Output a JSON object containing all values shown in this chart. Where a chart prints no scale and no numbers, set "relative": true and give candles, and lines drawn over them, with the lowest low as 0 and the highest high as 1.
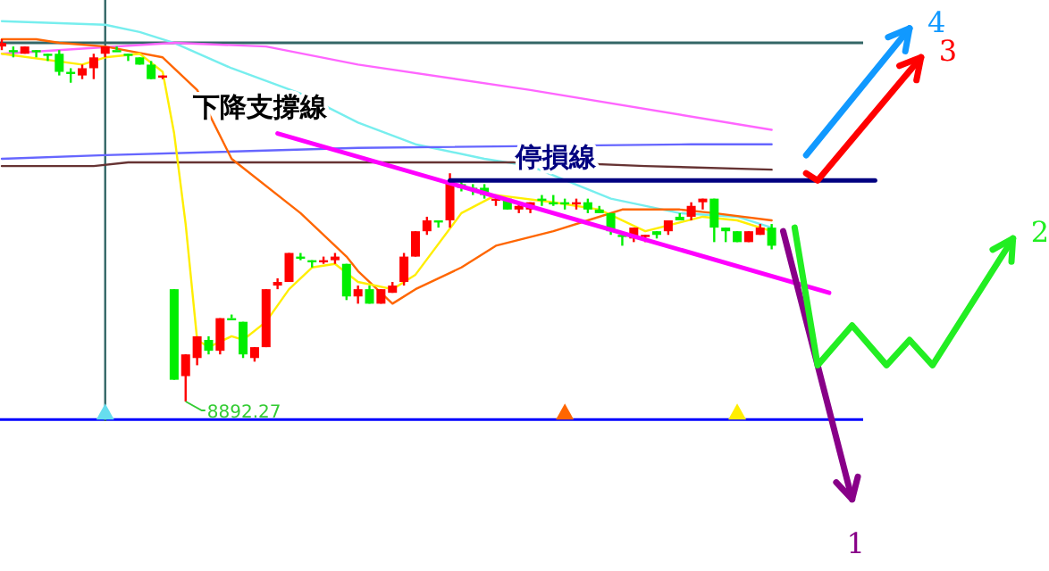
{
  "chart_data": {
    "type": "candlestick",
    "relative": true,
    "categories": [
      null,
      null,
      null,
      null,
      null,
      null,
      null,
      null,
      null,
      null,
      null,
      null,
      null,
      null,
      null,
      null,
      null,
      null,
      null,
      null,
      null,
      null,
      null,
      null,
      null,
      null,
      null,
      null,
      null,
      null,
      null,
      null,
      null,
      null,
      null,
      null,
      null,
      null,
      null,
      null,
      null,
      null,
      null,
      null,
      null,
      null,
      null,
      null,
      null,
      null,
      null,
      null,
      null,
      null,
      null,
      null,
      null,
      null,
      null,
      null,
      null,
      null,
      null,
      null,
      null,
      null,
      null,
      null,
      null,
      null,
      null,
      null,
      null,
      null,
      null,
      null,
      null,
      null,
      null,
      null,
      null,
      null,
      null,
      null,
      null,
      null,
      null,
      null,
      null,
      null
    ],
    "ohlc": [
      [
        0.98,
        1,
        0.97,
        0.99
      ],
      [
        0.97,
        0.98,
        0.95,
        0.97
      ],
      [
        0.96,
        0.98,
        0.96,
        0.98
      ],
      [
        0.97,
        0.97,
        0.95,
        0.97
      ],
      [
        0.96,
        0.96,
        0.94,
        0.96
      ],
      [
        0.96,
        0.97,
        0.9,
        0.91
      ],
      [
        0.91,
        0.92,
        0.88,
        0.91
      ],
      [
        0.9,
        0.93,
        0.89,
        0.92
      ],
      [
        0.92,
        0.96,
        0.89,
        0.95
      ],
      [
        0.96,
        0.98,
        0.95,
        0.98
      ],
      [
        0.97,
        0.98,
        0.97,
        0.97
      ],
      [
        0.96,
        0.96,
        0.94,
        0.96
      ],
      [
        0.95,
        0.95,
        0.93,
        0.93
      ],
      [
        0.93,
        0.94,
        0.89,
        0.89
      ],
      [
        0.9,
        0.9,
        0.89,
        0.9
      ],
      [
        0.31,
        0.31,
        0.06,
        0.06
      ],
      [
        0.07,
        0.13,
        0,
        0.13
      ],
      [
        0.12,
        0.18,
        0.1,
        0.18
      ],
      [
        0.17,
        0.18,
        0.13,
        0.14
      ],
      [
        0.14,
        0.23,
        0.13,
        0.23
      ],
      [
        0.23,
        0.24,
        0.23,
        0.23
      ],
      [
        0.22,
        0.22,
        0.12,
        0.13
      ],
      [
        0.12,
        0.15,
        0.11,
        0.15
      ],
      [
        0.15,
        0.31,
        0.15,
        0.31
      ],
      [
        0.32,
        0.34,
        0.31,
        0.33
      ],
      [
        0.33,
        0.41,
        0.33,
        0.41
      ],
      [
        0.4,
        0.41,
        0.39,
        0.4
      ],
      [
        0.39,
        0.39,
        0.37,
        0.39
      ],
      [
        0.39,
        0.4,
        0.38,
        0.39
      ],
      [
        0.39,
        0.41,
        0.38,
        0.4
      ],
      [
        0.38,
        0.38,
        0.28,
        0.29
      ],
      [
        0.29,
        0.32,
        0.27,
        0.31
      ],
      [
        0.31,
        0.32,
        0.27,
        0.27
      ],
      [
        0.27,
        0.31,
        0.27,
        0.31
      ],
      [
        0.3,
        0.33,
        0.3,
        0.32
      ],
      [
        0.33,
        0.41,
        0.32,
        0.4
      ],
      [
        0.4,
        0.47,
        0.4,
        0.47
      ],
      [
        0.47,
        0.51,
        0.46,
        0.5
      ],
      [
        0.5,
        0.5,
        0.48,
        0.5
      ],
      [
        0.5,
        0.63,
        0.48,
        0.61
      ],
      [
        0.6,
        0.61,
        0.58,
        0.59
      ],
      [
        0.59,
        0.6,
        0.57,
        0.59
      ],
      [
        0.59,
        0.6,
        0.56,
        0.57
      ],
      [
        0.56,
        0.57,
        0.54,
        0.56
      ],
      [
        0.56,
        0.56,
        0.53,
        0.53
      ],
      [
        0.53,
        0.55,
        0.52,
        0.54
      ],
      [
        0.53,
        0.55,
        0.52,
        0.55
      ],
      [
        0.56,
        0.57,
        0.54,
        0.56
      ],
      [
        0.55,
        0.57,
        0.54,
        0.55
      ],
      [
        0.55,
        0.56,
        0.53,
        0.55
      ],
      [
        0.55,
        0.56,
        0.53,
        0.55
      ],
      [
        0.55,
        0.56,
        0.52,
        0.53
      ],
      [
        0.53,
        0.54,
        0.52,
        0.52
      ],
      [
        0.52,
        0.52,
        0.46,
        0.47
      ],
      [
        0.46,
        0.46,
        0.43,
        0.46
      ],
      [
        0.45,
        0.48,
        0.44,
        0.48
      ],
      [
        0.46,
        0.46,
        0.44,
        0.46
      ],
      [
        0.47,
        0.47,
        0.45,
        0.46
      ],
      [
        0.47,
        0.5,
        0.46,
        0.5
      ],
      [
        0.51,
        0.52,
        0.5,
        0.5
      ],
      [
        0.51,
        0.55,
        0.5,
        0.54
      ],
      [
        0.55,
        0.56,
        0.53,
        0.56
      ],
      [
        0.56,
        0.56,
        0.44,
        0.48
      ],
      [
        0.48,
        0.48,
        0.44,
        0.47
      ],
      [
        0.47,
        0.47,
        0.44,
        0.44
      ],
      [
        0.44,
        0.47,
        0.44,
        0.47
      ],
      [
        0.46,
        0.49,
        0.46,
        0.48
      ],
      [
        0.48,
        0.49,
        0.42,
        0.43
      ],
      null,
      null,
      null,
      null,
      null,
      null,
      null,
      null,
      null,
      null,
      null,
      null,
      null,
      null,
      null,
      null,
      null,
      null,
      null,
      null,
      null,
      null
    ],
    "colors": [
      "#ff0000",
      "#00ee00",
      "#ff0000",
      "#00ee00",
      "#00ee00",
      "#00ee00",
      "#00ee00",
      "#ff0000",
      "#ff0000",
      "#ff0000",
      "#00ee00",
      "#00ee00",
      "#00ee00",
      "#00ee00",
      "#ff0000",
      "#00ee00",
      "#ff0000",
      "#ff0000",
      "#00ee00",
      "#ff0000",
      "#00ee00",
      "#00ee00",
      "#ff0000",
      "#ff0000",
      "#ff0000",
      "#ff0000",
      "#00ee00",
      "#00ee00",
      "#ff0000",
      "#ff0000",
      "#00ee00",
      "#ff0000",
      "#00ee00",
      "#ff0000",
      "#ff0000",
      "#ff0000",
      "#ff0000",
      "#ff0000",
      "#00ee00",
      "#ff0000",
      "#00ee00",
      "#00ee00",
      "#00ee00",
      "#ff0000",
      "#00ee00",
      "#ff0000",
      "#ff0000",
      "#00ee00",
      "#00ee00",
      "#00ee00",
      "#ff0000",
      "#00ee00",
      "#00ee00",
      "#00ee00",
      "#00ee00",
      "#ff0000",
      "#ff0000",
      "#00ee00",
      "#ff0000",
      "#00ee00",
      "#ff0000",
      "#ff0000",
      "#00ee00",
      "#00ee00",
      "#00ee00",
      "#ff0000",
      "#ff0000",
      "#00ee00",
      null,
      null,
      null,
      null,
      null,
      null,
      null,
      null,
      null,
      null,
      null,
      null,
      null,
      null,
      null,
      null,
      null,
      null,
      null,
      null,
      null,
      null
    ],
    "series": [
      {
        "type": "line",
        "color": "#77eeee",
        "values": [
          1.05,
          null,
          null,
          null,
          null,
          null,
          null,
          null,
          null,
          1.04,
          null,
          null,
          1.02,
          null,
          null,
          0.99,
          null,
          null,
          null,
          null,
          0.92,
          null,
          null,
          null,
          null,
          null,
          0.85,
          null,
          null,
          null,
          null,
          0.77,
          null,
          null,
          null,
          null,
          0.71,
          null,
          null,
          null,
          null,
          null,
          0.67,
          null,
          null,
          null,
          0.65,
          null,
          null,
          null,
          null,
          null,
          null,
          0.56,
          null,
          null,
          null,
          null,
          null,
          0.52,
          null,
          null,
          null,
          null,
          0.51,
          null,
          null,
          0.48,
          null,
          null,
          null,
          null,
          null,
          null,
          null,
          null,
          null,
          null,
          null,
          null,
          null,
          null,
          null,
          null,
          null,
          null,
          null,
          null,
          null,
          null
        ]
      },
      {
        "type": "line",
        "color": "#ff66ff",
        "values": [
          0.96,
          null,
          null,
          null,
          null,
          null,
          null,
          null,
          null,
          null,
          null,
          null,
          null,
          null,
          null,
          0.99,
          null,
          null,
          null,
          null,
          null,
          null,
          null,
          0.98,
          null,
          null,
          null,
          null,
          null,
          null,
          null,
          0.93,
          null,
          null,
          null,
          null,
          null,
          null,
          null,
          null,
          null,
          null,
          null,
          null,
          null,
          null,
          0.86,
          null,
          null,
          null,
          null,
          null,
          null,
          null,
          null,
          null,
          null,
          null,
          null,
          null,
          null,
          null,
          null,
          null,
          null,
          null,
          null,
          0.75,
          null,
          null,
          null,
          null,
          null,
          null,
          null,
          null,
          null,
          null,
          null,
          null,
          null,
          null,
          null,
          null,
          null,
          null,
          null,
          null,
          null,
          null
        ]
      },
      {
        "type": "line",
        "color": "#6666ff",
        "values": [
          0.67,
          null,
          null,
          null,
          null,
          null,
          null,
          null,
          null,
          0.68,
          null,
          null,
          null,
          null,
          null,
          null,
          null,
          null,
          null,
          null,
          null,
          null,
          null,
          null,
          null,
          null,
          null,
          null,
          null,
          null,
          null,
          0.7,
          null,
          null,
          null,
          null,
          null,
          null,
          null,
          null,
          null,
          null,
          null,
          null,
          null,
          null,
          null,
          null,
          null,
          null,
          null,
          null,
          null,
          null,
          null,
          null,
          null,
          null,
          null,
          null,
          0.71,
          null,
          null,
          null,
          null,
          null,
          null,
          0.71,
          null,
          null,
          null,
          null,
          null,
          null,
          null,
          null,
          null,
          null,
          null,
          null,
          null,
          null,
          null,
          null,
          null,
          null,
          null,
          null,
          null,
          null
        ]
      },
      {
        "type": "line",
        "color": "#663333",
        "values": [
          0.65,
          null,
          null,
          null,
          null,
          null,
          null,
          null,
          0.65,
          null,
          null,
          0.66,
          null,
          null,
          null,
          null,
          null,
          null,
          null,
          null,
          null,
          null,
          null,
          null,
          null,
          null,
          null,
          null,
          null,
          null,
          null,
          null,
          null,
          null,
          null,
          null,
          null,
          null,
          null,
          null,
          null,
          null,
          null,
          null,
          null,
          null,
          null,
          null,
          0.66,
          null,
          null,
          null,
          null,
          null,
          null,
          null,
          0.65,
          null,
          null,
          null,
          null,
          null,
          null,
          null,
          null,
          null,
          null,
          0.64,
          null,
          null,
          null,
          null,
          null,
          null,
          null,
          null,
          null,
          null,
          null,
          null,
          null,
          null,
          null,
          null,
          null,
          null,
          null,
          null,
          null,
          null
        ]
      },
      {
        "type": "line",
        "color": "#ff6600",
        "values": [
          1,
          null,
          null,
          1,
          null,
          0.99,
          null,
          null,
          null,
          0.98,
          null,
          null,
          null,
          null,
          0.95,
          null,
          null,
          0.86,
          null,
          null,
          0.67,
          null,
          null,
          null,
          null,
          null,
          0.52,
          null,
          null,
          null,
          0.4,
          0.36,
          null,
          null,
          0.27,
          null,
          0.31,
          null,
          null,
          null,
          0.37,
          null,
          null,
          0.43,
          null,
          null,
          null,
          null,
          0.47,
          null,
          null,
          0.5,
          null,
          null,
          0.53,
          null,
          null,
          null,
          null,
          0.53,
          null,
          null,
          0.52,
          null,
          null,
          null,
          null,
          0.5,
          null,
          null,
          null,
          null,
          null,
          null,
          null,
          null,
          null,
          null,
          null,
          null,
          null,
          null,
          null,
          null,
          null,
          null,
          null,
          null,
          null,
          null
        ]
      },
      {
        "type": "line",
        "color": "#ffee00",
        "values": [
          0.96,
          null,
          null,
          null,
          null,
          null,
          null,
          0.93,
          null,
          0.95,
          null,
          null,
          0.96,
          null,
          0.91,
          0.74,
          0.49,
          0.17,
          0.15,
          null,
          0.18,
          0.17,
          null,
          0.22,
          null,
          0.31,
          null,
          0.37,
          null,
          0.38,
          null,
          0.33,
          null,
          null,
          0.31,
          null,
          0.35,
          null,
          null,
          null,
          0.52,
          null,
          null,
          0.57,
          null,
          null,
          null,
          null,
          0.55,
          null,
          null,
          null,
          0.53,
          null,
          null,
          null,
          0.47,
          null,
          null,
          null,
          null,
          0.51,
          null,
          null,
          0.5,
          null,
          null,
          0.47,
          null,
          null,
          null,
          null,
          null,
          null,
          null,
          null,
          null,
          null,
          null,
          null,
          null,
          null,
          null,
          null,
          null,
          null,
          null,
          null,
          null,
          null
        ]
      },
      {
        "type": "line",
        "name": "下降支撐線",
        "color": "#ff00ff",
        "values": [
          null,
          null,
          null,
          null,
          null,
          null,
          null,
          null,
          null,
          null,
          null,
          null,
          null,
          null,
          null,
          null,
          null,
          null,
          null,
          null,
          null,
          null,
          null,
          null,
          0.74,
          null,
          null,
          null,
          null,
          null,
          null,
          null,
          null,
          null,
          null,
          null,
          null,
          null,
          null,
          null,
          null,
          null,
          null,
          null,
          null,
          null,
          null,
          null,
          null,
          null,
          null,
          null,
          null,
          null,
          null,
          null,
          null,
          null,
          null,
          null,
          null,
          null,
          null,
          null,
          null,
          null,
          null,
          null,
          null,
          null,
          null,
          null,
          0.3,
          null,
          null,
          null,
          null,
          null,
          null,
          null,
          null,
          null,
          null,
          null,
          null,
          null,
          null,
          null,
          null,
          null
        ]
      },
      {
        "type": "line",
        "name": "停損線",
        "color": "#000080",
        "values": [
          null,
          null,
          null,
          null,
          null,
          null,
          null,
          null,
          null,
          null,
          null,
          null,
          null,
          null,
          null,
          null,
          null,
          null,
          null,
          null,
          null,
          null,
          null,
          null,
          null,
          null,
          null,
          null,
          null,
          null,
          null,
          null,
          null,
          null,
          null,
          null,
          null,
          null,
          null,
          0.61,
          null,
          null,
          null,
          null,
          null,
          null,
          null,
          null,
          null,
          null,
          null,
          null,
          null,
          null,
          null,
          null,
          null,
          null,
          null,
          null,
          null,
          null,
          null,
          null,
          null,
          null,
          null,
          null,
          null,
          null,
          null,
          null,
          null,
          null,
          null,
          null,
          0.61,
          null,
          null,
          null,
          null,
          null,
          null,
          null,
          null,
          null,
          null,
          null,
          null,
          null
        ]
      },
      {
        "type": "scatter",
        "marker": "triangle",
        "values": [
          null,
          null,
          null,
          null,
          null,
          null,
          null,
          null,
          null,
          -0.03,
          null,
          null,
          null,
          null,
          null,
          null,
          null,
          null,
          null,
          null,
          null,
          null,
          null,
          null,
          null,
          null,
          null,
          null,
          null,
          null,
          null,
          null,
          null,
          null,
          null,
          null,
          null,
          null,
          null,
          null,
          null,
          null,
          null,
          null,
          null,
          null,
          null,
          null,
          null,
          -0.03,
          null,
          null,
          null,
          null,
          null,
          null,
          null,
          null,
          null,
          null,
          null,
          null,
          null,
          null,
          -0.03,
          null,
          null,
          null,
          null,
          null,
          null,
          null,
          null,
          null,
          null,
          null,
          null,
          null,
          null,
          null,
          null,
          null,
          null,
          null,
          null,
          null,
          null,
          null,
          null,
          null
        ],
        "colors": [
          null,
          null,
          null,
          null,
          null,
          null,
          null,
          null,
          null,
          "#66ddee",
          null,
          null,
          null,
          null,
          null,
          null,
          null,
          null,
          null,
          null,
          null,
          null,
          null,
          null,
          null,
          null,
          null,
          null,
          null,
          null,
          null,
          null,
          null,
          null,
          null,
          null,
          null,
          null,
          null,
          null,
          null,
          null,
          null,
          null,
          null,
          null,
          null,
          null,
          null,
          "#ff6600",
          null,
          null,
          null,
          null,
          null,
          null,
          null,
          null,
          null,
          null,
          null,
          null,
          null,
          null,
          "#ffee00",
          null,
          null,
          null,
          null,
          null,
          null,
          null,
          null,
          null,
          null,
          null,
          null,
          null,
          null,
          null,
          null,
          null,
          null,
          null,
          null,
          null,
          null,
          null,
          null,
          null
        ]
      },
      {
        "type": "line",
        "name": "1",
        "color": "#880088",
        "values": [
          null,
          null,
          null,
          null,
          null,
          null,
          null,
          null,
          null,
          null,
          null,
          null,
          null,
          null,
          null,
          null,
          null,
          null,
          null,
          null,
          null,
          null,
          null,
          null,
          null,
          null,
          null,
          null,
          null,
          null,
          null,
          null,
          null,
          null,
          null,
          null,
          null,
          null,
          null,
          null,
          null,
          null,
          null,
          null,
          null,
          null,
          null,
          null,
          null,
          null,
          null,
          null,
          null,
          null,
          null,
          null,
          null,
          null,
          null,
          null,
          null,
          null,
          null,
          null,
          null,
          null,
          null,
          null,
          0.47,
          null,
          null,
          null,
          null,
          null,
          -0.27,
          null,
          null,
          null,
          null,
          null,
          null,
          null,
          null,
          null,
          null,
          null,
          null,
          null,
          null,
          null
        ]
      },
      {
        "type": "line",
        "name": "2",
        "color": "#22ee22",
        "values": [
          null,
          null,
          null,
          null,
          null,
          null,
          null,
          null,
          null,
          null,
          null,
          null,
          null,
          null,
          null,
          null,
          null,
          null,
          null,
          null,
          null,
          null,
          null,
          null,
          null,
          null,
          null,
          null,
          null,
          null,
          null,
          null,
          null,
          null,
          null,
          null,
          null,
          null,
          null,
          null,
          null,
          null,
          null,
          null,
          null,
          null,
          null,
          null,
          null,
          null,
          null,
          null,
          null,
          null,
          null,
          null,
          null,
          null,
          null,
          null,
          null,
          null,
          null,
          null,
          null,
          null,
          null,
          null,
          null,
          0.48,
          null,
          0.1,
          null,
          null,
          0.21,
          null,
          null,
          0.1,
          null,
          0.17,
          null,
          0.1,
          null,
          null,
          null,
          null,
          null,
          null,
          0.45,
          null
        ]
      },
      {
        "type": "line",
        "name": "3",
        "color": "#ff0000",
        "values": [
          null,
          null,
          null,
          null,
          null,
          null,
          null,
          null,
          null,
          null,
          null,
          null,
          null,
          null,
          null,
          null,
          null,
          null,
          null,
          null,
          null,
          null,
          null,
          null,
          null,
          null,
          null,
          null,
          null,
          null,
          null,
          null,
          null,
          null,
          null,
          null,
          null,
          null,
          null,
          null,
          null,
          null,
          null,
          null,
          null,
          null,
          null,
          null,
          null,
          null,
          null,
          null,
          null,
          null,
          null,
          null,
          null,
          null,
          null,
          null,
          null,
          null,
          null,
          null,
          null,
          null,
          null,
          null,
          null,
          null,
          0.63,
          0.61,
          null,
          null,
          null,
          null,
          null,
          null,
          null,
          null,
          0.95,
          null,
          null,
          null,
          null,
          null,
          null,
          null,
          null,
          null
        ]
      },
      {
        "type": "line",
        "name": "4",
        "color": "#1199ff",
        "values": [
          null,
          null,
          null,
          null,
          null,
          null,
          null,
          null,
          null,
          null,
          null,
          null,
          null,
          null,
          null,
          null,
          null,
          null,
          null,
          null,
          null,
          null,
          null,
          null,
          null,
          null,
          null,
          null,
          null,
          null,
          null,
          null,
          null,
          null,
          null,
          null,
          null,
          null,
          null,
          null,
          null,
          null,
          null,
          null,
          null,
          null,
          null,
          null,
          null,
          null,
          null,
          null,
          null,
          null,
          null,
          null,
          null,
          null,
          null,
          null,
          null,
          null,
          null,
          null,
          null,
          null,
          null,
          null,
          null,
          null,
          0.68,
          null,
          null,
          null,
          null,
          null,
          null,
          null,
          null,
          1.03,
          null,
          null,
          null,
          null,
          null,
          null,
          null,
          null,
          null,
          null
        ]
      }
    ],
    "ref_lines": [
      {
        "axis": "y",
        "value": 0.99,
        "color": "#336666"
      },
      {
        "axis": "y",
        "value": -0.05,
        "color": "#0000ff"
      }
    ],
    "annotations": [
      "8892.27"
    ],
    "legend": "right"
  }
}
